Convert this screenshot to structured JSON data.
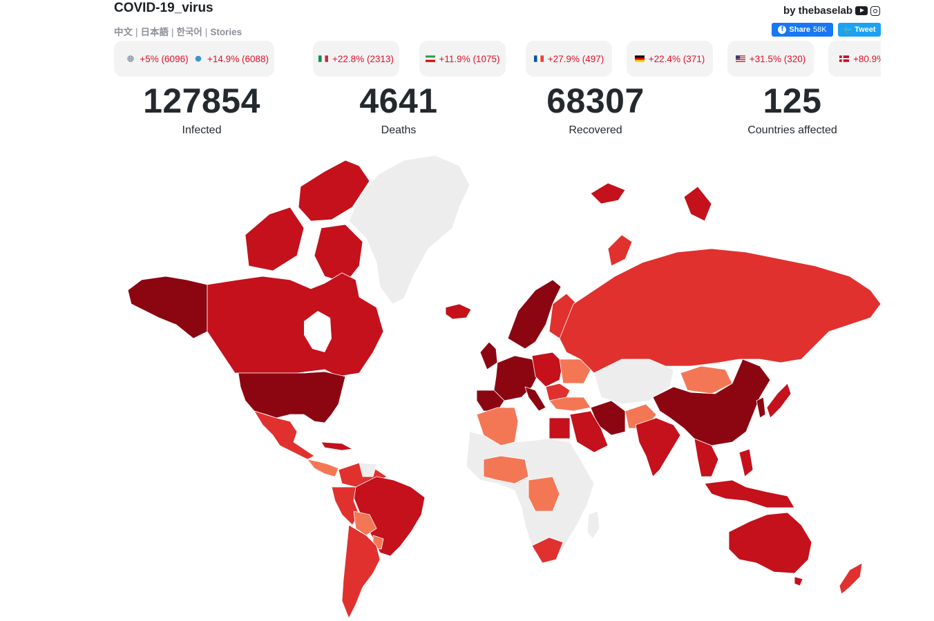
{
  "header": {
    "title": "COVID-19_virus",
    "languages": [
      "中文",
      "日本語",
      "한국어",
      "Stories"
    ],
    "byline": "by thebaselab",
    "share_label": "Share",
    "share_count": "58K",
    "tweet_label": "Tweet"
  },
  "chips": [
    {
      "flag": "globe-grey",
      "text": "+5% (6096)"
    },
    {
      "flag": "globe-earth",
      "text": "+14.9% (6088)"
    },
    {
      "flag": "italy",
      "text": "+22.8% (2313)"
    },
    {
      "flag": "iran",
      "text": "+11.9% (1075)"
    },
    {
      "flag": "france",
      "text": "+27.9% (497)"
    },
    {
      "flag": "germany",
      "text": "+22.4% (371)"
    },
    {
      "flag": "usa",
      "text": "+31.5% (320)"
    },
    {
      "flag": "denmark",
      "text": "+80.9%"
    }
  ],
  "stats": [
    {
      "value": "127854",
      "label": "Infected"
    },
    {
      "value": "4641",
      "label": "Deaths"
    },
    {
      "value": "68307",
      "label": "Recovered"
    },
    {
      "value": "125",
      "label": "Countries affected"
    }
  ],
  "map": {
    "levels": {
      "none": "#ededed",
      "low": "#f47755",
      "medium": "#e0312e",
      "high": "#c4111c",
      "very_high": "#8c0611"
    },
    "accent": "#e3102b"
  }
}
